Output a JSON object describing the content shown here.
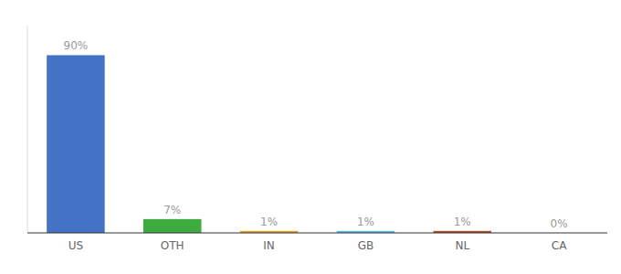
{
  "chart_data": {
    "type": "bar",
    "categories": [
      "US",
      "OTH",
      "IN",
      "GB",
      "NL",
      "CA"
    ],
    "values": [
      90,
      7,
      1,
      1,
      1,
      0
    ],
    "value_labels": [
      "90%",
      "7%",
      "1%",
      "1%",
      "1%",
      "0%"
    ],
    "colors": [
      "#4472c4",
      "#3dab3d",
      "#e8a020",
      "#5bb8e8",
      "#b84c27",
      "#e8a020"
    ],
    "ylim": [
      0,
      105
    ],
    "data_labels": true,
    "tick_labels": "x",
    "grid": false
  }
}
